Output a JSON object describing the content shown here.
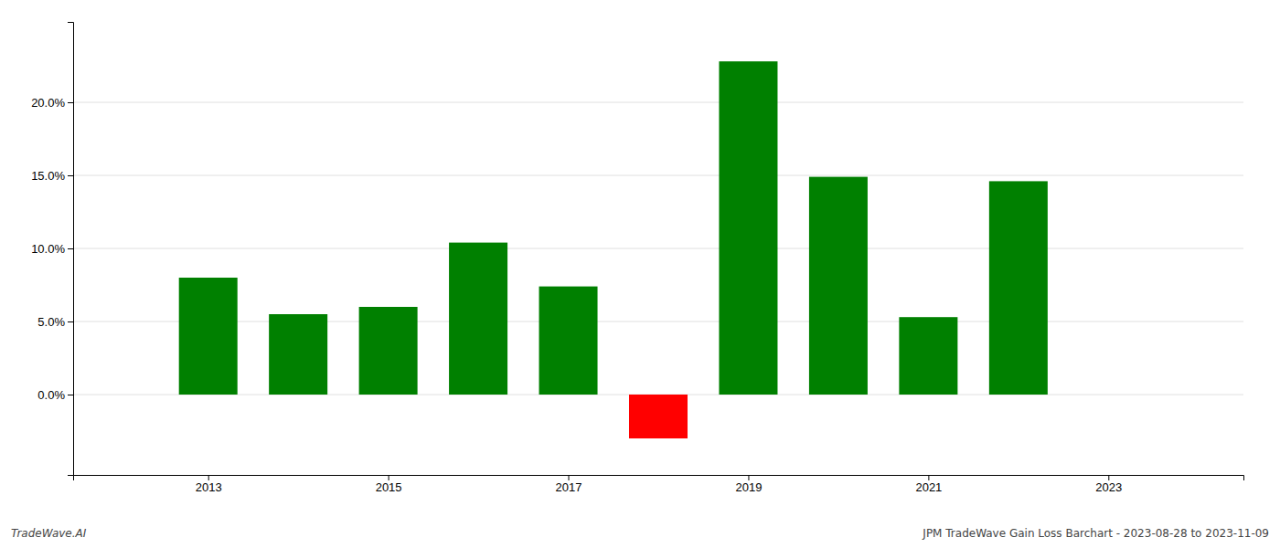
{
  "chart_data": {
    "type": "bar",
    "x": [
      2013,
      2014,
      2015,
      2016,
      2017,
      2018,
      2019,
      2020,
      2021,
      2022
    ],
    "values": [
      0.08,
      0.055,
      0.06,
      0.104,
      0.074,
      -0.03,
      0.228,
      0.149,
      0.053,
      0.146
    ],
    "colors": [
      "#008000",
      "#008000",
      "#008000",
      "#008000",
      "#008000",
      "#ff0000",
      "#008000",
      "#008000",
      "#008000",
      "#008000"
    ],
    "xlim": [
      2011.5,
      2024.5
    ],
    "xticks": [
      2013,
      2015,
      2017,
      2019,
      2021,
      2023
    ],
    "ylim": [
      -0.055,
      0.255
    ],
    "yticks": [
      {
        "value": 0.0,
        "label": "0.0%"
      },
      {
        "value": 0.05,
        "label": "5.0%"
      },
      {
        "value": 0.1,
        "label": "10.0%"
      },
      {
        "value": 0.15,
        "label": "15.0%"
      },
      {
        "value": 0.2,
        "label": "20.0%"
      }
    ],
    "grid": true,
    "annotations": [
      "TradeWave.AI",
      "JPM TradeWave Gain Loss Barchart - 2023-08-28 to 2023-11-09"
    ]
  }
}
